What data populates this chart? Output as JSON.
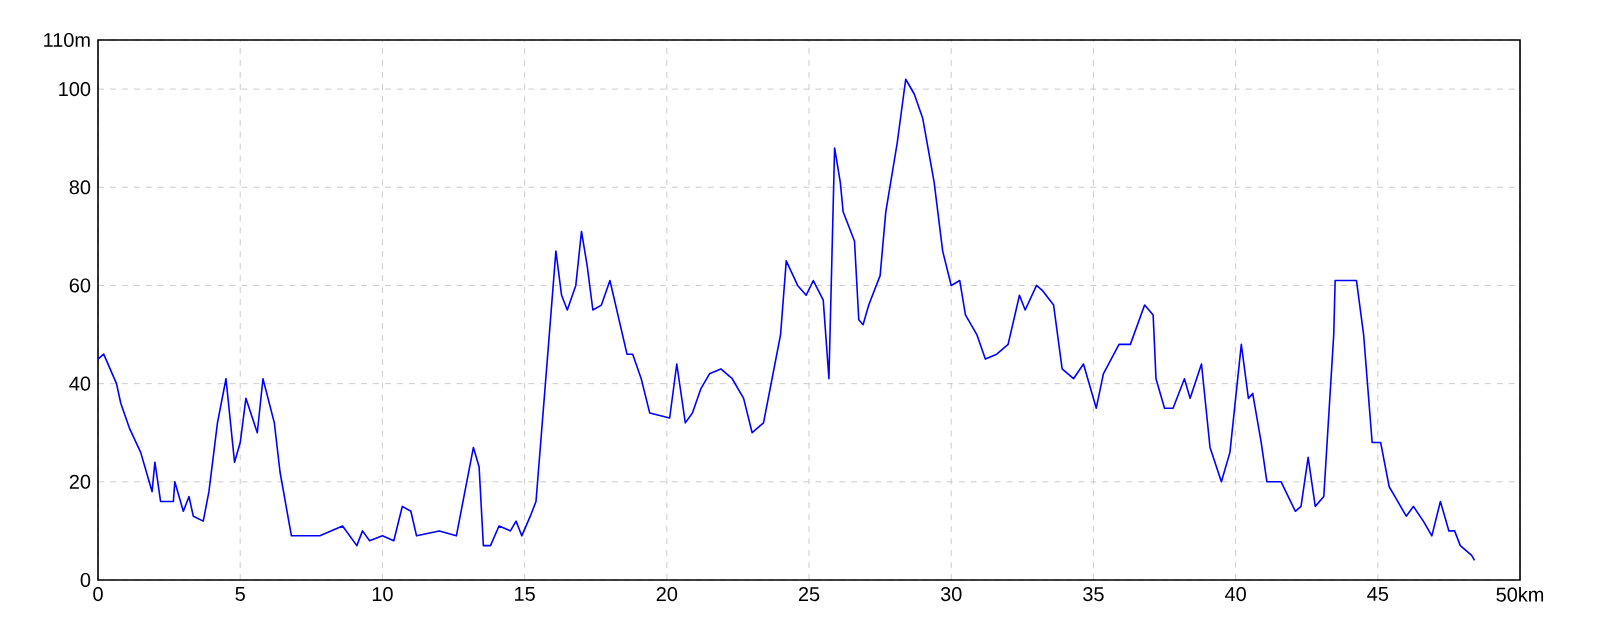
{
  "chart_data": {
    "type": "line",
    "color": "#0000ff",
    "line_style": "solid",
    "grid": true,
    "xlim": [
      0,
      50
    ],
    "ylim": [
      0,
      110
    ],
    "xticks": [
      0,
      5,
      10,
      15,
      20,
      25,
      30,
      35,
      40,
      45,
      {
        "value": 50,
        "label": "50km"
      }
    ],
    "yticks": [
      0,
      20,
      40,
      60,
      80,
      100,
      {
        "value": 110,
        "label": "110m"
      }
    ],
    "x": [
      0,
      0.2,
      0.65,
      0.8,
      1.1,
      1.5,
      1.8,
      1.9,
      2.0,
      2.2,
      2.65,
      2.7,
      3.0,
      3.2,
      3.35,
      3.7,
      3.9,
      4.2,
      4.5,
      4.8,
      5.0,
      5.2,
      5.6,
      5.8,
      6.2,
      6.4,
      6.8,
      7.8,
      8.6,
      9.1,
      9.3,
      9.55,
      10.0,
      10.4,
      10.7,
      11.0,
      11.2,
      12.0,
      12.6,
      13.2,
      13.4,
      13.55,
      13.8,
      14.1,
      14.5,
      14.7,
      14.9,
      15.2,
      15.4,
      15.8,
      16.1,
      16.3,
      16.5,
      16.8,
      17.0,
      17.2,
      17.4,
      17.7,
      18.0,
      18.2,
      18.6,
      18.8,
      19.1,
      19.4,
      20.1,
      20.35,
      20.65,
      20.9,
      21.2,
      21.5,
      21.9,
      22.3,
      22.7,
      23.0,
      23.4,
      23.7,
      24.0,
      24.2,
      24.6,
      24.9,
      25.15,
      25.5,
      25.7,
      25.9,
      26.1,
      26.2,
      26.6,
      26.75,
      26.9,
      27.1,
      27.5,
      27.7,
      28.1,
      28.4,
      28.7,
      29.0,
      29.4,
      29.7,
      30.0,
      30.3,
      30.5,
      30.9,
      31.2,
      31.6,
      32.0,
      32.4,
      32.6,
      33.0,
      33.2,
      33.6,
      33.9,
      34.3,
      34.65,
      35.1,
      35.35,
      35.9,
      36.3,
      36.8,
      37.1,
      37.2,
      37.5,
      37.8,
      38.2,
      38.4,
      38.8,
      39.1,
      39.5,
      39.8,
      40.2,
      40.45,
      40.6,
      40.9,
      41.1,
      41.6,
      42.1,
      42.3,
      42.55,
      42.8,
      43.1,
      43.45,
      43.5,
      44.25,
      44.5,
      44.8,
      45.1,
      45.4,
      45.7,
      46.0,
      46.25,
      46.6,
      46.9,
      47.2,
      47.5,
      47.7,
      47.9,
      48.3,
      48.4
    ],
    "values": [
      45,
      46,
      40,
      36,
      31,
      26,
      20,
      18,
      24,
      16,
      16,
      20,
      14,
      17,
      13,
      12,
      18,
      32,
      41,
      24,
      28,
      37,
      30,
      41,
      32,
      22,
      9,
      9,
      11,
      7,
      10,
      8,
      9,
      8,
      15,
      14,
      9,
      10,
      9,
      27,
      23,
      7,
      7,
      11,
      10,
      12,
      9,
      13,
      16,
      45,
      67,
      58,
      55,
      60,
      71,
      64,
      55,
      56,
      61,
      56,
      46,
      46,
      41,
      34,
      33,
      44,
      32,
      34,
      39,
      42,
      43,
      41,
      37,
      30,
      32,
      41,
      50,
      65,
      60,
      58,
      61,
      57,
      41,
      88,
      81,
      75,
      69,
      53,
      52,
      56,
      62,
      75,
      89,
      102,
      99,
      94,
      81,
      67,
      60,
      61,
      54,
      50,
      45,
      46,
      48,
      58,
      55,
      60,
      59,
      56,
      43,
      41,
      44,
      35,
      42,
      48,
      48,
      56,
      54,
      41,
      35,
      35,
      41,
      37,
      44,
      27,
      20,
      26,
      48,
      37,
      38,
      28,
      20,
      20,
      14,
      15,
      25,
      15,
      17,
      50,
      61,
      61,
      50,
      28,
      28,
      19,
      16,
      13,
      15,
      12,
      9,
      16,
      10,
      10,
      7,
      5,
      4
    ]
  }
}
